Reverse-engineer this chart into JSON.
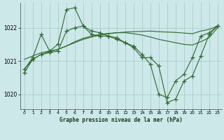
{
  "title": "Graphe pression niveau de la mer (hPa)",
  "bg_color": "#cce8e8",
  "grid_color": "#aacccc",
  "line_color": "#2d6a2d",
  "marker": "+",
  "marker_size": 4,
  "line_width": 0.8,
  "xlim": [
    -0.5,
    23.5
  ],
  "ylim": [
    1019.55,
    1022.75
  ],
  "yticks": [
    1020,
    1021,
    1022
  ],
  "xticks": [
    0,
    1,
    2,
    3,
    4,
    5,
    6,
    7,
    8,
    9,
    10,
    11,
    12,
    13,
    14,
    15,
    16,
    17,
    18,
    19,
    20,
    21,
    22,
    23
  ],
  "series": [
    {
      "x": [
        0,
        1,
        2,
        3,
        4,
        5,
        6,
        7,
        8,
        9,
        10,
        11,
        12,
        13,
        14,
        15,
        16,
        17,
        18,
        19,
        20,
        21,
        22,
        23
      ],
      "y": [
        1021.05,
        1021.15,
        1021.25,
        1021.3,
        1021.35,
        1021.45,
        1021.55,
        1021.65,
        1021.72,
        1021.78,
        1021.82,
        1021.85,
        1021.87,
        1021.88,
        1021.89,
        1021.9,
        1021.88,
        1021.87,
        1021.86,
        1021.84,
        1021.82,
        1021.9,
        1021.95,
        1022.05
      ],
      "has_markers": false
    },
    {
      "x": [
        0,
        1,
        2,
        3,
        4,
        5,
        6,
        7,
        8,
        9,
        10,
        11,
        12,
        13,
        14,
        15,
        16,
        17,
        18,
        19,
        20,
        21,
        22,
        23
      ],
      "y": [
        1020.75,
        1021.05,
        1021.2,
        1021.28,
        1021.35,
        1021.45,
        1021.58,
        1021.68,
        1021.75,
        1021.8,
        1021.83,
        1021.85,
        1021.85,
        1021.82,
        1021.78,
        1021.72,
        1021.65,
        1021.6,
        1021.55,
        1021.5,
        1021.48,
        1021.58,
        1021.7,
        1022.0
      ],
      "has_markers": false
    },
    {
      "x": [
        0,
        1,
        2,
        3,
        4,
        5,
        6,
        7,
        8,
        9,
        10,
        11,
        12,
        13,
        14,
        15,
        16,
        17,
        18,
        19,
        20,
        21,
        22,
        23
      ],
      "y": [
        1020.75,
        1021.1,
        1021.8,
        1021.3,
        1021.5,
        1022.55,
        1022.6,
        1022.05,
        1021.8,
        1021.75,
        1021.75,
        1021.65,
        1021.55,
        1021.4,
        1021.1,
        1021.1,
        1020.85,
        1019.75,
        1019.85,
        1020.4,
        1020.55,
        1021.15,
        1021.8,
        1022.05
      ],
      "has_markers": true
    },
    {
      "x": [
        0,
        1,
        2,
        3,
        4,
        5,
        6,
        7,
        8,
        9,
        10,
        11,
        12,
        13,
        14,
        15,
        16,
        17,
        18,
        19,
        20,
        21,
        22,
        23
      ],
      "y": [
        1020.65,
        1021.05,
        1021.2,
        1021.25,
        1021.3,
        1021.9,
        1022.0,
        1022.05,
        1021.9,
        1021.85,
        1021.75,
        1021.7,
        1021.55,
        1021.45,
        1021.2,
        1020.9,
        1020.0,
        1019.9,
        1020.4,
        1020.6,
        1021.1,
        1021.75,
        1021.85,
        1022.05
      ],
      "has_markers": true
    }
  ]
}
